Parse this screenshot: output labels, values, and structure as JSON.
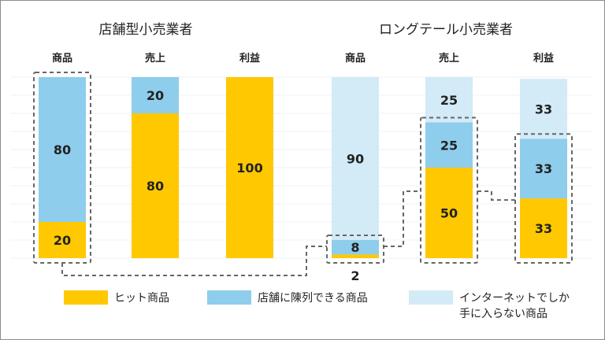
{
  "colors": {
    "shelf": "#FFC800",
    "store": "#8ECDEC",
    "internet": "#D3EAF7",
    "grid": "#EEF2F5",
    "dashed": "#666666"
  },
  "chart_data": [
    {
      "type": "bar",
      "stacked": true,
      "title": "店舗型小売業者",
      "categories": [
        "商品",
        "売上",
        "利益"
      ],
      "ylim": [
        0,
        100
      ],
      "series": [
        {
          "name": "ヒット商品",
          "values": [
            20,
            80,
            100
          ]
        },
        {
          "name": "店舗に陳列できる商品",
          "values": [
            80,
            20,
            0
          ]
        },
        {
          "name": "インターネットでしか手に入らない商品",
          "values": [
            0,
            0,
            0
          ]
        }
      ]
    },
    {
      "type": "bar",
      "stacked": true,
      "title": "ロングテール小売業者",
      "categories": [
        "商品",
        "売上",
        "利益"
      ],
      "ylim": [
        0,
        100
      ],
      "series": [
        {
          "name": "ヒット商品",
          "values": [
            2,
            50,
            33
          ]
        },
        {
          "name": "店舗に陳列できる商品",
          "values": [
            8,
            25,
            33
          ]
        },
        {
          "name": "インターネットでしか手に入らない商品",
          "values": [
            90,
            25,
            33
          ]
        }
      ]
    }
  ],
  "legend": [
    {
      "label": "ヒット商品",
      "color": "#FFC800"
    },
    {
      "label": "店舗に陳列できる商品",
      "color": "#8ECDEC"
    },
    {
      "label_lines": [
        "インターネットでしか",
        "手に入らない商品"
      ],
      "color": "#D3EAF7"
    }
  ]
}
